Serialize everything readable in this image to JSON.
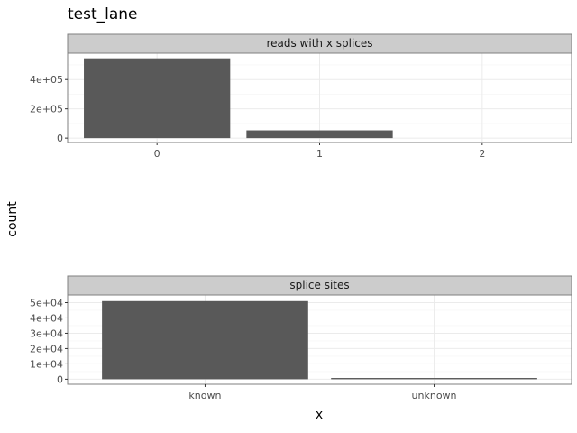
{
  "title": "test_lane",
  "ylabel": "count",
  "xlabel": "x",
  "colors": {
    "bar": "#595959",
    "strip_bg": "#cccccc",
    "panel_border": "#7f7f7f",
    "grid_major": "#ebebeb"
  },
  "chart_data": [
    {
      "type": "bar",
      "facet": "reads with x splices",
      "categories": [
        "0",
        "1",
        "2"
      ],
      "values": [
        545000,
        53000,
        0
      ],
      "yticks": [
        0,
        200000,
        400000
      ],
      "ytick_labels": [
        "0",
        "2e+05",
        "4e+05"
      ],
      "ylim": [
        -30000,
        580000
      ],
      "xlim": [
        -0.55,
        2.55
      ],
      "grid": true
    },
    {
      "type": "bar",
      "facet": "splice sites",
      "categories": [
        "known",
        "unknown"
      ],
      "values": [
        51000,
        800
      ],
      "yticks": [
        0,
        10000,
        20000,
        30000,
        40000,
        50000
      ],
      "ytick_labels": [
        "0",
        "1e+04",
        "2e+04",
        "3e+04",
        "4e+04",
        "5e+04"
      ],
      "ylim": [
        -3300,
        55000
      ],
      "xlim": [
        0.4,
        2.6
      ],
      "grid": true
    }
  ]
}
